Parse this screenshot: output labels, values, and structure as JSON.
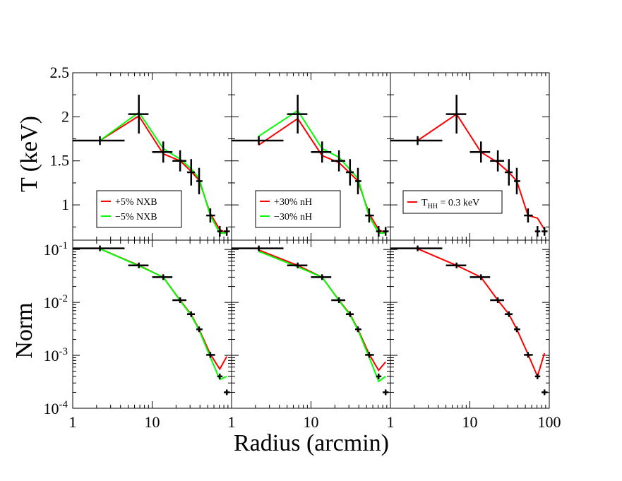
{
  "figure": {
    "xlabel": "Radius (arcmin)",
    "ylabel_top": "T (keV)",
    "ylabel_bottom": "Norm"
  },
  "colors": {
    "red": "#ff0000",
    "green": "#00ff00",
    "data": "#000000"
  },
  "chart_data": [
    {
      "type": "line",
      "panel": "top-left",
      "xscale": "log",
      "xlim": [
        1,
        100
      ],
      "ylim": [
        0.6,
        2.5
      ],
      "xticklabels": [
        "1",
        "10"
      ],
      "yticklabels": [
        "1",
        "1.5",
        "2",
        "2.5"
      ],
      "data": {
        "x": [
          2.2,
          6.8,
          13.8,
          22.5,
          31.0,
          39.0,
          54.0,
          71.0,
          87.0
        ],
        "xerr_lo": [
          1.2,
          1.8,
          3.8,
          4.5,
          3.5,
          3.0,
          6.0,
          5.0,
          7.0
        ],
        "xerr_hi": [
          2.3,
          2.2,
          4.2,
          4.5,
          3.5,
          4.0,
          8.0,
          6.0,
          8.0
        ],
        "y": [
          1.73,
          2.03,
          1.6,
          1.5,
          1.37,
          1.27,
          0.88,
          0.7,
          0.7
        ],
        "yerr": [
          0.05,
          0.22,
          0.12,
          0.12,
          0.15,
          0.15,
          0.08,
          0.06,
          0.05
        ]
      },
      "series": [
        {
          "name": "+5% NXB",
          "color": "#ff0000",
          "x": [
            2.2,
            6.8,
            13.8,
            22.5,
            31.0,
            39.0,
            54.0,
            71.0,
            87.0
          ],
          "y": [
            1.73,
            2.01,
            1.58,
            1.5,
            1.38,
            1.28,
            0.9,
            0.72,
            0.68
          ]
        },
        {
          "name": "−5% NXB",
          "color": "#00ff00",
          "x": [
            2.2,
            6.8,
            13.8,
            22.5,
            31.0,
            39.0,
            54.0,
            71.0,
            87.0
          ],
          "y": [
            1.73,
            2.05,
            1.64,
            1.52,
            1.41,
            1.3,
            0.88,
            0.68,
            0.68
          ]
        }
      ]
    },
    {
      "type": "line",
      "panel": "top-middle",
      "xscale": "log",
      "xlim": [
        1,
        100
      ],
      "ylim": [
        0.6,
        2.5
      ],
      "xticklabels": [
        "1",
        "10"
      ],
      "yticklabels": [],
      "data": {
        "x": [
          2.2,
          6.8,
          13.8,
          22.5,
          31.0,
          39.0,
          54.0,
          71.0,
          87.0
        ],
        "xerr_lo": [
          1.2,
          1.8,
          3.8,
          4.5,
          3.5,
          3.0,
          6.0,
          5.0,
          7.0
        ],
        "xerr_hi": [
          2.3,
          2.2,
          4.2,
          4.5,
          3.5,
          4.0,
          8.0,
          6.0,
          8.0
        ],
        "y": [
          1.73,
          2.03,
          1.6,
          1.5,
          1.37,
          1.27,
          0.88,
          0.7,
          0.7
        ],
        "yerr": [
          0.05,
          0.22,
          0.12,
          0.12,
          0.15,
          0.15,
          0.08,
          0.06,
          0.05
        ]
      },
      "series": [
        {
          "name": "+30% nH",
          "color": "#ff0000",
          "x": [
            2.2,
            6.8,
            13.8,
            22.5,
            31.0,
            39.0,
            54.0,
            71.0,
            87.0
          ],
          "y": [
            1.68,
            1.98,
            1.56,
            1.48,
            1.36,
            1.27,
            0.9,
            0.72,
            0.68
          ]
        },
        {
          "name": "−30% nH",
          "color": "#00ff00",
          "x": [
            2.2,
            6.8,
            13.8,
            22.5,
            31.0,
            39.0,
            54.0,
            71.0,
            87.0
          ],
          "y": [
            1.78,
            2.07,
            1.64,
            1.54,
            1.4,
            1.3,
            0.87,
            0.68,
            0.68
          ]
        }
      ]
    },
    {
      "type": "line",
      "panel": "top-right",
      "xscale": "log",
      "xlim": [
        1,
        100
      ],
      "ylim": [
        0.6,
        2.5
      ],
      "xticklabels": [
        "1",
        "10"
      ],
      "yticklabels": [],
      "data": {
        "x": [
          2.2,
          6.8,
          13.8,
          22.5,
          31.0,
          39.0,
          54.0,
          71.0,
          87.0
        ],
        "xerr_lo": [
          1.2,
          1.8,
          3.8,
          4.5,
          3.5,
          3.0,
          6.0,
          5.0,
          7.0
        ],
        "xerr_hi": [
          2.3,
          2.2,
          4.2,
          4.5,
          3.5,
          4.0,
          8.0,
          6.0,
          8.0
        ],
        "y": [
          1.73,
          2.03,
          1.6,
          1.5,
          1.37,
          1.27,
          0.88,
          0.7,
          0.7
        ],
        "yerr": [
          0.05,
          0.22,
          0.12,
          0.12,
          0.15,
          0.15,
          0.08,
          0.06,
          0.05
        ]
      },
      "series": [
        {
          "name": "T_HH = 0.3 keV",
          "color": "#ff0000",
          "x": [
            2.2,
            6.8,
            13.8,
            22.5,
            31.0,
            39.0,
            54.0,
            71.0,
            87.0
          ],
          "y": [
            1.73,
            2.03,
            1.6,
            1.48,
            1.37,
            1.27,
            0.88,
            0.85,
            0.72
          ]
        }
      ]
    },
    {
      "type": "line",
      "panel": "bottom-left",
      "xscale": "log",
      "yscale": "log",
      "xlim": [
        1,
        100
      ],
      "ylim": [
        0.0001,
        0.15
      ],
      "xticklabels": [
        "1",
        "10"
      ],
      "yticklabels": [
        "10^-1",
        "10^-2",
        "10^-3",
        "10^-4"
      ],
      "data": {
        "x": [
          2.2,
          6.8,
          13.8,
          22.5,
          31.0,
          39.0,
          54.0,
          71.0,
          87.0
        ],
        "xerr_lo": [
          1.2,
          1.8,
          3.8,
          4.5,
          3.5,
          3.0,
          6.0,
          5.0,
          7.0
        ],
        "xerr_hi": [
          2.3,
          2.2,
          4.2,
          4.5,
          3.5,
          4.0,
          8.0,
          6.0,
          8.0
        ],
        "y": [
          0.105,
          0.05,
          0.03,
          0.011,
          0.006,
          0.0031,
          0.00102,
          0.0004,
          0.0002
        ]
      },
      "series": [
        {
          "name": "+5% NXB",
          "color": "#ff0000",
          "x": [
            2.2,
            6.8,
            13.8,
            22.5,
            31.0,
            39.0,
            54.0,
            71.0,
            87.0
          ],
          "y": [
            0.103,
            0.05,
            0.03,
            0.011,
            0.0059,
            0.0031,
            0.00105,
            0.00055,
            0.00095
          ]
        },
        {
          "name": "−5% NXB",
          "color": "#00ff00",
          "x": [
            2.2,
            6.8,
            13.8,
            22.5,
            31.0,
            39.0,
            54.0,
            71.0,
            87.0
          ],
          "y": [
            0.103,
            0.049,
            0.03,
            0.0108,
            0.0057,
            0.003,
            0.00092,
            0.00035,
            0.0004
          ]
        }
      ]
    },
    {
      "type": "line",
      "panel": "bottom-middle",
      "xscale": "log",
      "yscale": "log",
      "xlim": [
        1,
        100
      ],
      "ylim": [
        0.0001,
        0.15
      ],
      "xticklabels": [
        "1",
        "10"
      ],
      "yticklabels": [],
      "data": {
        "x": [
          2.2,
          6.8,
          13.8,
          22.5,
          31.0,
          39.0,
          54.0,
          71.0,
          87.0
        ],
        "xerr_lo": [
          1.2,
          1.8,
          3.8,
          4.5,
          3.5,
          3.0,
          6.0,
          5.0,
          7.0
        ],
        "xerr_hi": [
          2.3,
          2.2,
          4.2,
          4.5,
          3.5,
          4.0,
          8.0,
          6.0,
          8.0
        ],
        "y": [
          0.105,
          0.05,
          0.03,
          0.011,
          0.006,
          0.0031,
          0.00102,
          0.0004,
          0.0002
        ]
      },
      "series": [
        {
          "name": "+30% nH",
          "color": "#ff0000",
          "x": [
            2.2,
            6.8,
            13.8,
            22.5,
            31.0,
            39.0,
            54.0,
            71.0,
            87.0
          ],
          "y": [
            0.098,
            0.05,
            0.03,
            0.011,
            0.006,
            0.0031,
            0.00105,
            0.00052,
            0.00075
          ]
        },
        {
          "name": "−30% nH",
          "color": "#00ff00",
          "x": [
            2.2,
            6.8,
            13.8,
            22.5,
            31.0,
            39.0,
            54.0,
            71.0,
            87.0
          ],
          "y": [
            0.092,
            0.047,
            0.03,
            0.0108,
            0.0058,
            0.003,
            0.00092,
            0.00032,
            0.0004
          ]
        }
      ]
    },
    {
      "type": "line",
      "panel": "bottom-right",
      "xscale": "log",
      "yscale": "log",
      "xlim": [
        1,
        100
      ],
      "ylim": [
        0.0001,
        0.15
      ],
      "xticklabels": [
        "1",
        "10",
        "100"
      ],
      "yticklabels": [],
      "data": {
        "x": [
          2.2,
          6.8,
          13.8,
          22.5,
          31.0,
          39.0,
          54.0,
          71.0,
          87.0
        ],
        "xerr_lo": [
          1.2,
          1.8,
          3.8,
          4.5,
          3.5,
          3.0,
          6.0,
          5.0,
          7.0
        ],
        "xerr_hi": [
          2.3,
          2.2,
          4.2,
          4.5,
          3.5,
          4.0,
          8.0,
          6.0,
          8.0
        ],
        "y": [
          0.105,
          0.05,
          0.03,
          0.011,
          0.006,
          0.0031,
          0.00102,
          0.0004,
          0.0002
        ]
      },
      "series": [
        {
          "name": "T_HH = 0.3 keV",
          "color": "#ff0000",
          "x": [
            2.2,
            6.8,
            13.8,
            22.5,
            31.0,
            39.0,
            54.0,
            71.0,
            87.0
          ],
          "y": [
            0.103,
            0.05,
            0.03,
            0.011,
            0.006,
            0.0031,
            0.00105,
            0.0004,
            0.0011
          ]
        }
      ]
    }
  ]
}
